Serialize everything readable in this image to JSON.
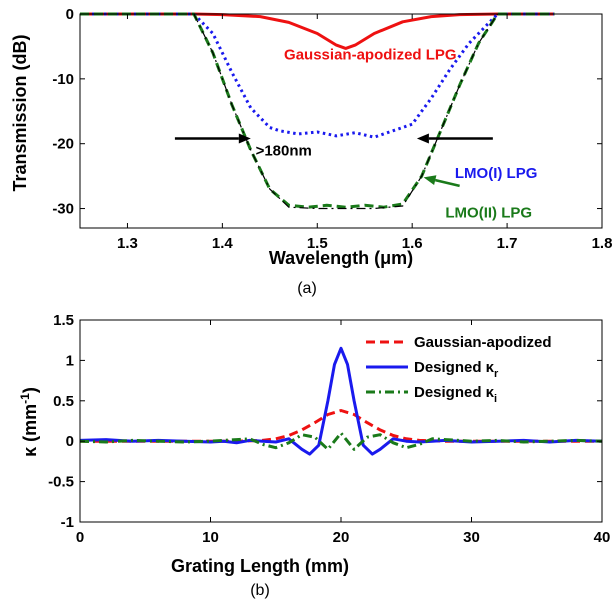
{
  "chart_data": [
    {
      "type": "line",
      "caption": "(a)",
      "xlabel": "Wavelength (μm)",
      "ylabel": "Transmission (dB)",
      "xlim": [
        1.25,
        1.8
      ],
      "ylim": [
        -33,
        0
      ],
      "xticks": [
        "1.3",
        "1.4",
        "1.5",
        "1.6",
        "1.7",
        "1.8"
      ],
      "yticks": [
        "0",
        "-10",
        "-20",
        "-30"
      ],
      "grid": false,
      "series": [
        {
          "name": "Gaussian-apodized LPG",
          "color": "#ee1111",
          "style": "solid",
          "x": [
            1.25,
            1.37,
            1.4,
            1.44,
            1.47,
            1.5,
            1.52,
            1.53,
            1.54,
            1.56,
            1.59,
            1.62,
            1.65,
            1.69,
            1.75
          ],
          "y": [
            0,
            0,
            -0.1,
            -0.4,
            -1.3,
            -3.0,
            -4.8,
            -5.3,
            -4.8,
            -3.0,
            -1.2,
            -0.4,
            -0.1,
            0,
            0
          ]
        },
        {
          "name": "LMO(I) LPG",
          "color": "#1a1aee",
          "style": "dotted",
          "x": [
            1.25,
            1.37,
            1.39,
            1.41,
            1.43,
            1.45,
            1.46,
            1.48,
            1.5,
            1.52,
            1.54,
            1.56,
            1.58,
            1.6,
            1.62,
            1.64,
            1.66,
            1.68,
            1.69,
            1.75
          ],
          "y": [
            0,
            0,
            -3,
            -9,
            -14.5,
            -17.5,
            -18.0,
            -18.5,
            -18.2,
            -18.8,
            -18.3,
            -19.0,
            -18.0,
            -17.0,
            -13.0,
            -8.5,
            -4.5,
            -1.5,
            0,
            0
          ]
        },
        {
          "name": "LMO(II) LPG",
          "color": "#1a7a1a",
          "style": "dashed",
          "x": [
            1.25,
            1.37,
            1.39,
            1.41,
            1.43,
            1.45,
            1.47,
            1.49,
            1.51,
            1.53,
            1.55,
            1.57,
            1.59,
            1.61,
            1.63,
            1.65,
            1.67,
            1.69,
            1.75
          ],
          "y": [
            0,
            0,
            -6,
            -14,
            -21,
            -27,
            -29.5,
            -29.8,
            -29.5,
            -29.8,
            -29.5,
            -29.8,
            -29.3,
            -25,
            -18,
            -11,
            -4.5,
            0,
            0
          ]
        },
        {
          "name": "",
          "color": "#000000",
          "style": "dashdot",
          "x": [
            1.37,
            1.39,
            1.41,
            1.43,
            1.45,
            1.47,
            1.5,
            1.53,
            1.56,
            1.59,
            1.61,
            1.63,
            1.65,
            1.67,
            1.69
          ],
          "y": [
            0,
            -6,
            -14,
            -21,
            -27,
            -29.8,
            -30,
            -30,
            -30,
            -29.6,
            -25,
            -18,
            -11,
            -4.5,
            0
          ]
        }
      ],
      "annotations": [
        {
          "text": "Gaussian-apodized LPG",
          "x": 1.465,
          "y": -7.0,
          "color": "#ee1111"
        },
        {
          "text": ">180nm",
          "x": 1.435,
          "y": -21.8,
          "color": "#000000"
        },
        {
          "text": "LMO(I) LPG",
          "x": 1.645,
          "y": -25.3,
          "color": "#1a1aee"
        },
        {
          "text": "LMO(II) LPG",
          "x": 1.635,
          "y": -31.4,
          "color": "#1a7a1a"
        }
      ],
      "arrows": [
        {
          "from": [
            1.35,
            -19.2
          ],
          "to": [
            1.43,
            -19.2
          ],
          "color": "#000000"
        },
        {
          "from": [
            1.685,
            -19.2
          ],
          "to": [
            1.605,
            -19.2
          ],
          "color": "#000000"
        },
        {
          "from": [
            1.65,
            -26.5
          ],
          "to": [
            1.612,
            -25.2
          ],
          "color": "#1a7a1a"
        }
      ]
    },
    {
      "type": "line",
      "caption": "(b)",
      "xlabel": "Grating Length (mm)",
      "ylabel": "κ (mm-1)",
      "xlim": [
        0,
        40
      ],
      "ylim": [
        -1,
        1.5
      ],
      "xticks": [
        "0",
        "10",
        "20",
        "30",
        "40"
      ],
      "yticks": [
        "1.5",
        "1",
        "0.5",
        "0",
        "-0.5",
        "-1"
      ],
      "grid": false,
      "legend_position": "top-right",
      "series": [
        {
          "name": "Gaussian-apodized",
          "color": "#ee1111",
          "style": "dashed",
          "x": [
            0,
            12,
            14,
            15,
            16,
            17,
            18,
            19,
            20,
            21,
            22,
            23,
            24,
            25,
            26,
            28,
            40
          ],
          "y": [
            0,
            0,
            0.01,
            0.03,
            0.07,
            0.14,
            0.23,
            0.33,
            0.38,
            0.33,
            0.23,
            0.14,
            0.07,
            0.03,
            0.01,
            0,
            0
          ]
        },
        {
          "name": "Designed κr",
          "color": "#1a1aee",
          "style": "solid",
          "x": [
            0,
            2,
            4,
            6,
            8,
            10,
            11,
            12,
            13,
            14,
            15,
            16,
            17,
            17.6,
            18.3,
            19,
            19.5,
            20,
            20.5,
            21,
            21.7,
            22.4,
            23,
            24,
            25,
            26,
            27,
            28,
            30,
            32,
            34,
            36,
            38,
            40
          ],
          "y": [
            0.01,
            0.02,
            0,
            0.01,
            0,
            -0.01,
            0,
            -0.02,
            0.01,
            0,
            -0.01,
            0.03,
            -0.1,
            -0.16,
            -0.05,
            0.5,
            0.95,
            1.15,
            0.95,
            0.5,
            -0.05,
            -0.16,
            -0.1,
            0.03,
            0,
            -0.01,
            0,
            0.01,
            -0.01,
            0,
            0.01,
            -0.01,
            0.01,
            0
          ]
        },
        {
          "name": "Designed κi",
          "color": "#1a7a1a",
          "style": "dashdot",
          "x": [
            0,
            2,
            4,
            6,
            8,
            10,
            12,
            13,
            14,
            15,
            16,
            17,
            18,
            19,
            20,
            21,
            22,
            23,
            24,
            25,
            26,
            27,
            28,
            30,
            32,
            34,
            36,
            38,
            40
          ],
          "y": [
            0,
            -0.01,
            0.01,
            0,
            -0.01,
            0,
            0.02,
            0.03,
            -0.04,
            -0.08,
            -0.02,
            0.08,
            0.05,
            -0.1,
            0.1,
            -0.1,
            0.05,
            0.08,
            -0.02,
            -0.08,
            -0.04,
            0.03,
            0.02,
            0,
            0.01,
            -0.01,
            0,
            0.01,
            0
          ]
        }
      ]
    }
  ]
}
